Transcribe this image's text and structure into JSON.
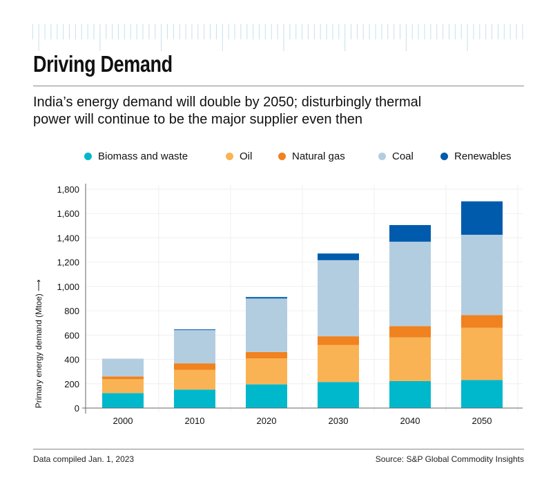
{
  "header": {
    "title": "Driving Demand",
    "subtitle": "India’s energy demand will double by 2050; disturbingly thermal power will continue to be the major supplier even then"
  },
  "footer": {
    "left": "Data compiled Jan. 1, 2023",
    "right": "Source: S&P Global Commodity Insights"
  },
  "chart_data": {
    "type": "bar",
    "stacked": true,
    "title": "",
    "xlabel": "",
    "ylabel": "Primary energy demand (Mtoe) ⟶",
    "ylim": [
      0,
      1800
    ],
    "yticks": [
      "0",
      "200",
      "400",
      "600",
      "800",
      "1,000",
      "1,200",
      "1,400",
      "1,600",
      "1,800"
    ],
    "ytick_values": [
      0,
      200,
      400,
      600,
      800,
      1000,
      1200,
      1400,
      1600,
      1800
    ],
    "grid": true,
    "legend_position": "top",
    "categories": [
      "2000",
      "2010",
      "2020",
      "2030",
      "2040",
      "2050"
    ],
    "series": [
      {
        "name": "Biomass and waste",
        "color": "#00b8cc",
        "values": [
          123,
          152,
          195,
          214,
          222,
          230
        ]
      },
      {
        "name": "Oil",
        "color": "#f9b354",
        "values": [
          114,
          163,
          213,
          304,
          359,
          430
        ]
      },
      {
        "name": "Natural gas",
        "color": "#f0821f",
        "values": [
          23,
          53,
          53,
          72,
          93,
          105
        ]
      },
      {
        "name": "Coal",
        "color": "#b3cde0",
        "values": [
          146,
          273,
          440,
          626,
          694,
          660
        ]
      },
      {
        "name": "Renewables",
        "color": "#005bac",
        "values": [
          0,
          6,
          12,
          55,
          137,
          275
        ]
      }
    ]
  }
}
